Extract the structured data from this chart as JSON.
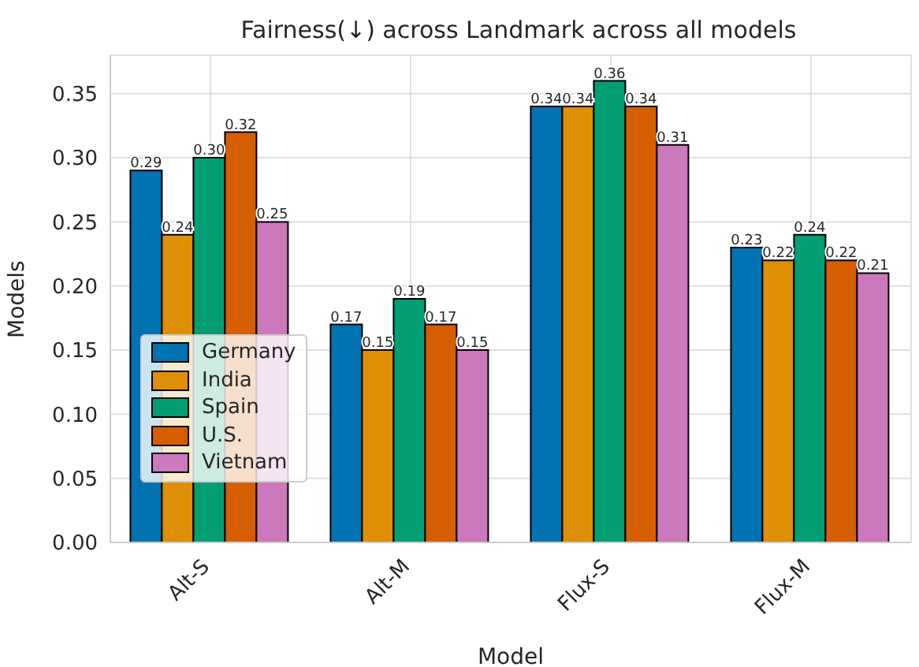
{
  "chart_data": {
    "type": "bar",
    "title": "Fairness(↓) across Landmark across all models",
    "xlabel": "Model",
    "ylabel": "Models",
    "categories": [
      "Alt-S",
      "Alt-M",
      "Flux-S",
      "Flux-M"
    ],
    "series": [
      {
        "name": "Germany",
        "color": "#0173b2",
        "values": [
          0.29,
          0.17,
          0.34,
          0.23
        ],
        "value_labels": [
          "0.29",
          "0.17",
          "0.34",
          "0.23"
        ]
      },
      {
        "name": "India",
        "color": "#de8f05",
        "values": [
          0.24,
          0.15,
          0.34,
          0.22
        ],
        "value_labels": [
          "0.24",
          "0.15",
          "0.34",
          "0.22"
        ]
      },
      {
        "name": "Spain",
        "color": "#029e73",
        "values": [
          0.3,
          0.19,
          0.36,
          0.24
        ],
        "value_labels": [
          "0.30",
          "0.19",
          "0.36",
          "0.24"
        ]
      },
      {
        "name": "U.S.",
        "color": "#d55e00",
        "values": [
          0.32,
          0.17,
          0.34,
          0.22
        ],
        "value_labels": [
          "0.32",
          "0.17",
          "0.34",
          "0.22"
        ]
      },
      {
        "name": "Vietnam",
        "color": "#cc78bc",
        "values": [
          0.25,
          0.15,
          0.31,
          0.21
        ],
        "value_labels": [
          "0.25",
          "0.15",
          "0.31",
          "0.21"
        ]
      }
    ],
    "ylim": [
      0,
      0.38
    ],
    "yticks": [
      {
        "value": 0,
        "label": "0.00"
      },
      {
        "value": 0.05,
        "label": "0.05"
      },
      {
        "value": 0.1,
        "label": "0.10"
      },
      {
        "value": 0.15,
        "label": "0.15"
      },
      {
        "value": 0.2,
        "label": "0.20"
      },
      {
        "value": 0.25,
        "label": "0.25"
      },
      {
        "value": 0.3,
        "label": "0.30"
      },
      {
        "value": 0.35,
        "label": "0.35"
      }
    ],
    "grid": true,
    "legend": "bottom left"
  }
}
